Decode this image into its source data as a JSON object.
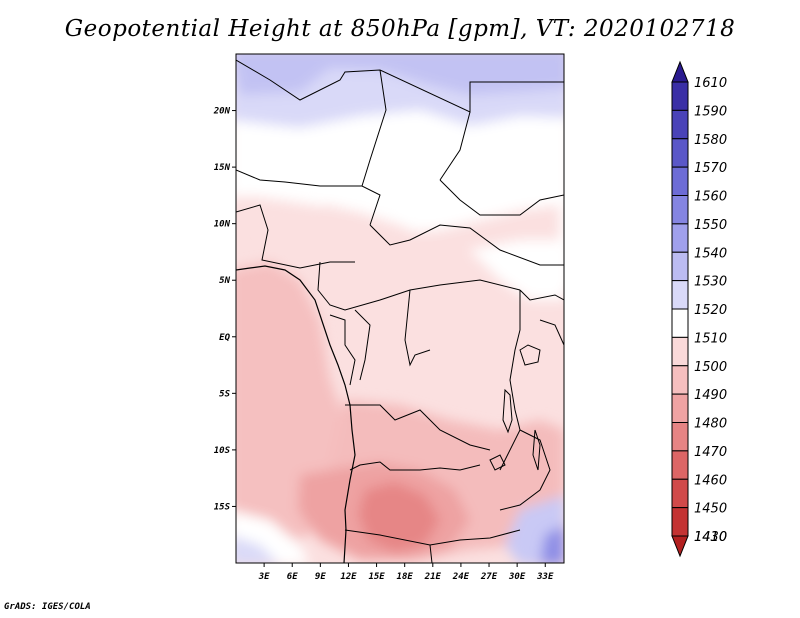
{
  "title": "Geopotential Height at 850hPa [gpm], VT: 2020102718",
  "credit": "GrADS: IGES/COLA",
  "map": {
    "lon_range": [
      0,
      35
    ],
    "lat_range": [
      -20,
      25
    ],
    "lat_ticks": [
      "20N",
      "15N",
      "10N",
      "5N",
      "EQ",
      "5S",
      "10S",
      "15S"
    ],
    "lon_ticks": [
      "3E",
      "6E",
      "9E",
      "12E",
      "15E",
      "18E",
      "21E",
      "24E",
      "27E",
      "30E",
      "33E"
    ]
  },
  "colorbar": {
    "levels": [
      "1610",
      "1590",
      "1580",
      "1570",
      "1560",
      "1550",
      "1540",
      "1530",
      "1520",
      "1510",
      "1500",
      "1490",
      "1480",
      "1470",
      "1460",
      "1450",
      "1430",
      "1410"
    ],
    "colors": [
      "#2a1a8f",
      "#3a2fa6",
      "#4a43b8",
      "#5a57c8",
      "#6d6cd6",
      "#8585e2",
      "#a0a0ec",
      "#bcbcf2",
      "#d9d9f8",
      "#ffffff",
      "#fad9d9",
      "#f6bfbf",
      "#efa3a3",
      "#e68484",
      "#dd6666",
      "#d14a4a",
      "#c43333",
      "#b32020"
    ]
  }
}
